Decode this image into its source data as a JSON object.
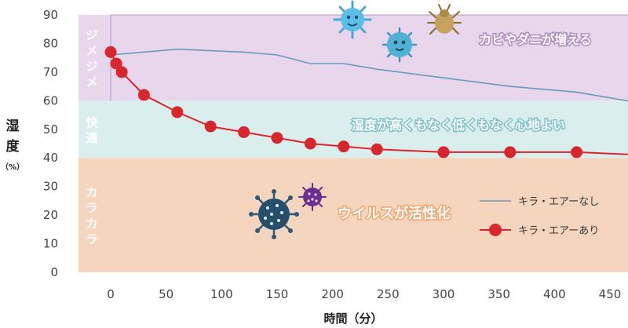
{
  "chart_data": {
    "type": "line",
    "xlabel": "時間（分）",
    "ylabel": "湿度",
    "ylabel_unit": "（%）",
    "xlim": [
      -10,
      480
    ],
    "ylim": [
      0,
      90
    ],
    "x_ticks": [
      0,
      50,
      100,
      150,
      200,
      250,
      300,
      350,
      400,
      450
    ],
    "y_ticks": [
      0,
      10,
      20,
      30,
      40,
      50,
      60,
      70,
      80,
      90
    ],
    "grid": false,
    "legend_position": "bottom-right",
    "zones": [
      {
        "label": "カラカラ",
        "from": 0,
        "to": 40,
        "color": "#f6d5bf",
        "label_color": "#f3b58e"
      },
      {
        "label": "快適",
        "from": 40,
        "to": 60,
        "color": "#daeeee",
        "label_color": "#8fcdd1"
      },
      {
        "label": "ジメジメ",
        "from": 60,
        "to": 90,
        "color": "#e7d6ec",
        "label_color": "#c8a3d5"
      }
    ],
    "annotations": [
      {
        "text": "カビやダニが増える",
        "zone": "ジメジメ"
      },
      {
        "text": "湿度が高くもなく低くもなく心地よい",
        "zone": "快適"
      },
      {
        "text": "ウイルスが活性化",
        "zone": "カラカラ"
      }
    ],
    "series": [
      {
        "name": "キラ・エアーなし",
        "color": "#6a9bb8",
        "marker": "none",
        "x": [
          0,
          60,
          120,
          150,
          180,
          210,
          240,
          300,
          360,
          420,
          480
        ],
        "y": [
          76,
          78,
          77,
          76,
          73,
          73,
          71,
          68,
          65,
          63,
          59
        ]
      },
      {
        "name": "キラ・エアーあり",
        "color": "#d9262c",
        "marker": "circle",
        "x": [
          0,
          5,
          10,
          30,
          60,
          90,
          120,
          150,
          180,
          210,
          240,
          300,
          360,
          420,
          480
        ],
        "y": [
          77,
          73,
          70,
          62,
          56,
          51,
          49,
          47,
          45,
          44,
          43,
          42,
          42,
          42,
          41
        ]
      }
    ]
  },
  "icons": [
    "bacteria-cyan-icon",
    "germ-teal-icon",
    "dust-mite-icon",
    "virus-navy-icon",
    "virus-purple-icon"
  ]
}
